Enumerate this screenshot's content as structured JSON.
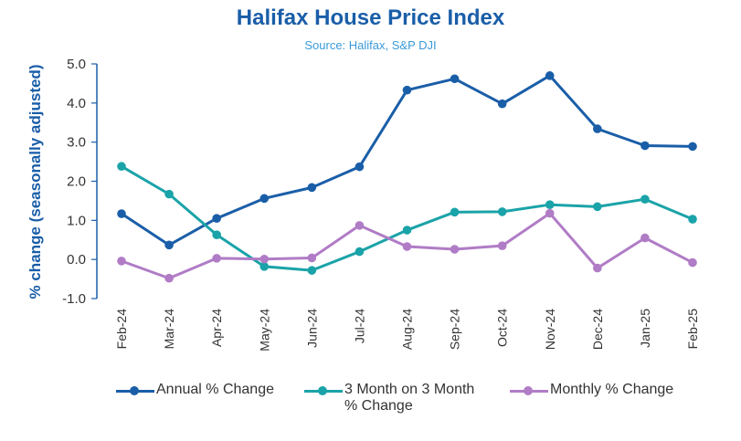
{
  "chart_data": {
    "type": "line",
    "title": "Halifax House Price Index",
    "subtitle": "Source: Halifax, S&P DJI",
    "xlabel": "",
    "ylabel": "% change (seasonally adjusted)",
    "ylim": [
      -1.0,
      5.0
    ],
    "yticks": [
      "5.0",
      "4.0",
      "3.0",
      "2.0",
      "1.0",
      "0.0",
      "-1.0"
    ],
    "categories": [
      "Feb-24",
      "Mar-24",
      "Apr-24",
      "May-24",
      "Jun-24",
      "Jul-24",
      "Aug-24",
      "Sep-24",
      "Oct-24",
      "Nov-24",
      "Dec-24",
      "Jan-25",
      "Feb-25"
    ],
    "grid": false,
    "legend_position": "bottom",
    "series": [
      {
        "name": "Annual % Change",
        "color": "#1a5ea8",
        "values": [
          1.17,
          0.37,
          1.05,
          1.56,
          1.84,
          2.37,
          4.33,
          4.62,
          3.98,
          4.7,
          3.34,
          2.91,
          2.89
        ]
      },
      {
        "name": "3 Month on 3 Month\n% Change",
        "color": "#1aa3a8",
        "values": [
          2.38,
          1.67,
          0.63,
          -0.18,
          -0.28,
          0.2,
          0.75,
          1.21,
          1.22,
          1.4,
          1.35,
          1.54,
          1.03
        ]
      },
      {
        "name": "Monthly % Change",
        "color": "#b07cc6",
        "values": [
          -0.04,
          -0.48,
          0.03,
          0.01,
          0.04,
          0.87,
          0.33,
          0.26,
          0.35,
          1.18,
          -0.22,
          0.55,
          -0.08
        ]
      }
    ]
  },
  "colors": {
    "title": "#1a5ea8",
    "subtitle": "#3a9ad9",
    "axis": "#1a5ea8",
    "tick_text": "#333333"
  }
}
